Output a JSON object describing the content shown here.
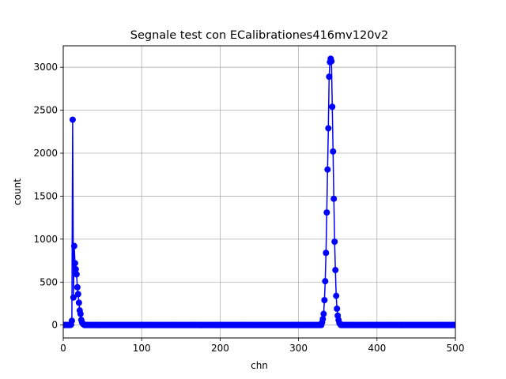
{
  "chart_data": {
    "type": "line",
    "title": "Segnale test con ECalibrationes416mv120v2",
    "xlabel": "chn",
    "ylabel": "count",
    "xlim": [
      0,
      500
    ],
    "ylim": [
      -150,
      3250
    ],
    "xticks": [
      0,
      100,
      200,
      300,
      400,
      500
    ],
    "yticks": [
      0,
      500,
      1000,
      1500,
      2000,
      2500,
      3000
    ],
    "grid": true,
    "marker": "circle",
    "series_color": "#0000ff",
    "x_range": [
      0,
      511
    ],
    "baseline": 0,
    "points": [
      [
        10,
        5
      ],
      [
        11,
        50
      ],
      [
        12,
        2390
      ],
      [
        13,
        320
      ],
      [
        14,
        920
      ],
      [
        15,
        720
      ],
      [
        16,
        650
      ],
      [
        17,
        590
      ],
      [
        18,
        440
      ],
      [
        19,
        360
      ],
      [
        20,
        260
      ],
      [
        21,
        170
      ],
      [
        22,
        130
      ],
      [
        23,
        60
      ],
      [
        24,
        30
      ],
      [
        25,
        15
      ],
      [
        26,
        8
      ],
      [
        330,
        30
      ],
      [
        331,
        70
      ],
      [
        332,
        130
      ],
      [
        333,
        290
      ],
      [
        334,
        510
      ],
      [
        335,
        840
      ],
      [
        336,
        1310
      ],
      [
        337,
        1810
      ],
      [
        338,
        2290
      ],
      [
        339,
        2890
      ],
      [
        340,
        3060
      ],
      [
        341,
        3100
      ],
      [
        342,
        3070
      ],
      [
        343,
        2540
      ],
      [
        344,
        2020
      ],
      [
        345,
        1470
      ],
      [
        346,
        970
      ],
      [
        347,
        640
      ],
      [
        348,
        340
      ],
      [
        349,
        190
      ],
      [
        350,
        110
      ],
      [
        351,
        60
      ],
      [
        352,
        25
      ],
      [
        353,
        10
      ]
    ]
  }
}
